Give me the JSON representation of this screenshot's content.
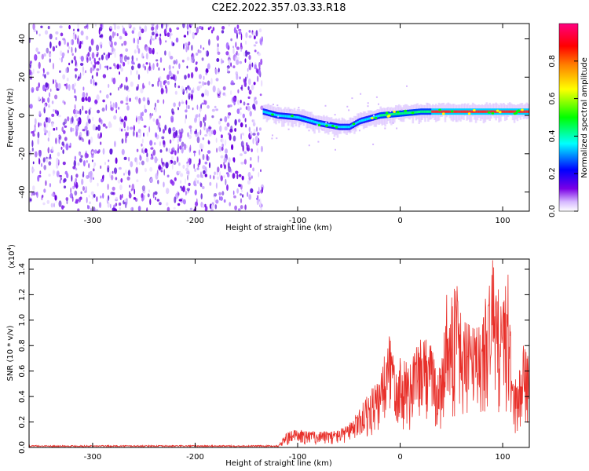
{
  "title": "C2E2.2022.357.03.33.R18",
  "chart_data": [
    {
      "type": "heatmap",
      "xlabel": "Height of straight line (km)",
      "ylabel": "Frequency (Hz)",
      "xlim": [
        -362,
        126
      ],
      "ylim": [
        -50,
        48
      ],
      "xticks": [
        -300,
        -200,
        -100,
        0,
        100
      ],
      "yticks": [
        -40,
        -20,
        0,
        20,
        40
      ],
      "noise_region_x": [
        -362,
        -134
      ],
      "signal_track": {
        "x": [
          -134,
          -120,
          -100,
          -80,
          -60,
          -50,
          -40,
          -20,
          0,
          20,
          40,
          60,
          80,
          100,
          126
        ],
        "freq": [
          2,
          0,
          -1,
          -4,
          -6,
          -6,
          -3,
          0,
          1,
          2,
          2,
          2,
          2,
          2,
          2
        ]
      },
      "colorbar": {
        "label": "Normalized spectral amplitude",
        "range": [
          0.0,
          1.0
        ],
        "ticks": [
          0.0,
          0.2,
          0.4,
          0.6,
          0.8
        ],
        "tick_labels": [
          "0.0",
          "0.2",
          "0.4",
          "0.6",
          "0.8"
        ],
        "colors": [
          "#ffffff",
          "#7a00e6",
          "#0000ff",
          "#00ffff",
          "#00ff00",
          "#ffff00",
          "#ff7f00",
          "#ff0000",
          "#ff0080"
        ]
      }
    },
    {
      "type": "line",
      "xlabel": "Height of straight line (km)",
      "ylabel": "SNR (10 * v/v)",
      "ylabel_scale": "(x10",
      "ylabel_scale_exp": "4",
      "ylabel_scale_close": ")",
      "xlim": [
        -362,
        126
      ],
      "ylim": [
        0.0,
        1.48
      ],
      "xticks": [
        -300,
        -200,
        -100,
        0,
        100
      ],
      "yticks": [
        0.0,
        0.2,
        0.4,
        0.6,
        0.8,
        1.0,
        1.2,
        1.4
      ],
      "ytick_labels": [
        "0.0",
        "0.2",
        "0.4",
        "0.6",
        "0.8",
        "1.0",
        "1.2",
        "1.4"
      ],
      "series": [
        {
          "color": "#e8302a",
          "envelope": {
            "x": [
              -362,
              -120,
              -110,
              -100,
              -80,
              -60,
              -50,
              -40,
              -30,
              -20,
              -10,
              0,
              10,
              20,
              30,
              40,
              45,
              50,
              55,
              60,
              70,
              80,
              90,
              95,
              100,
              105,
              110,
              115,
              120,
              126
            ],
            "y": [
              0.01,
              0.01,
              0.12,
              0.14,
              0.12,
              0.14,
              0.18,
              0.3,
              0.45,
              0.52,
              0.95,
              0.7,
              0.65,
              0.88,
              0.82,
              0.6,
              1.2,
              1.18,
              1.3,
              1.0,
              0.95,
              1.02,
              1.48,
              1.25,
              1.2,
              1.4,
              0.55,
              0.55,
              0.8,
              0.78
            ]
          }
        }
      ]
    }
  ]
}
